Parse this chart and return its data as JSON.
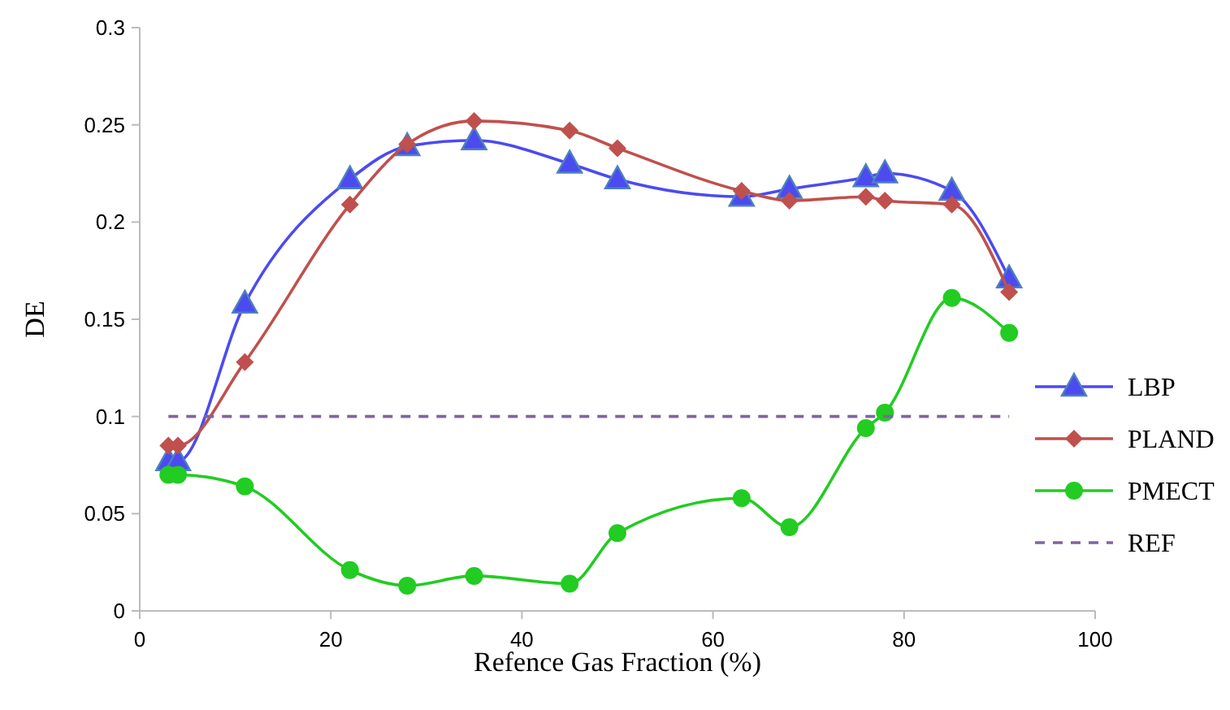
{
  "chart_data": {
    "type": "line",
    "xlabel": "Refence Gas Fraction (%)",
    "ylabel": "DE",
    "xlim": [
      0,
      100
    ],
    "xticks": [
      0,
      20,
      40,
      60,
      80,
      100
    ],
    "ylim": [
      0,
      0.3
    ],
    "yticks": [
      0,
      0.05,
      0.1,
      0.15,
      0.2,
      0.25,
      0.3
    ],
    "grid": false,
    "legend": "right",
    "line_style": "solid",
    "x": [
      3,
      4,
      11,
      22,
      28,
      35,
      45,
      50,
      63,
      68,
      76,
      78,
      85,
      91
    ],
    "series": [
      {
        "name": "LBP",
        "color": "#4b4bf0",
        "marker": "triangle",
        "values": [
          0.077,
          0.077,
          0.158,
          0.222,
          0.239,
          0.242,
          0.23,
          0.222,
          0.213,
          0.217,
          0.223,
          0.225,
          0.216,
          0.171
        ]
      },
      {
        "name": "PLAND",
        "color": "#c0504d",
        "marker": "diamond",
        "values": [
          0.085,
          0.085,
          0.128,
          0.209,
          0.24,
          0.252,
          0.247,
          0.238,
          0.216,
          0.211,
          0.213,
          0.211,
          0.209,
          0.164
        ]
      },
      {
        "name": "PMECT",
        "color": "#22cc22",
        "marker": "circle",
        "values": [
          0.07,
          0.07,
          0.064,
          0.021,
          0.013,
          0.018,
          0.014,
          0.04,
          0.058,
          0.043,
          0.094,
          0.102,
          0.161,
          0.143
        ]
      },
      {
        "name": "REF",
        "color": "#8064a2",
        "marker": "none",
        "line_style": "dashed",
        "x": [
          3,
          91
        ],
        "values": [
          0.1,
          0.1
        ]
      }
    ]
  }
}
